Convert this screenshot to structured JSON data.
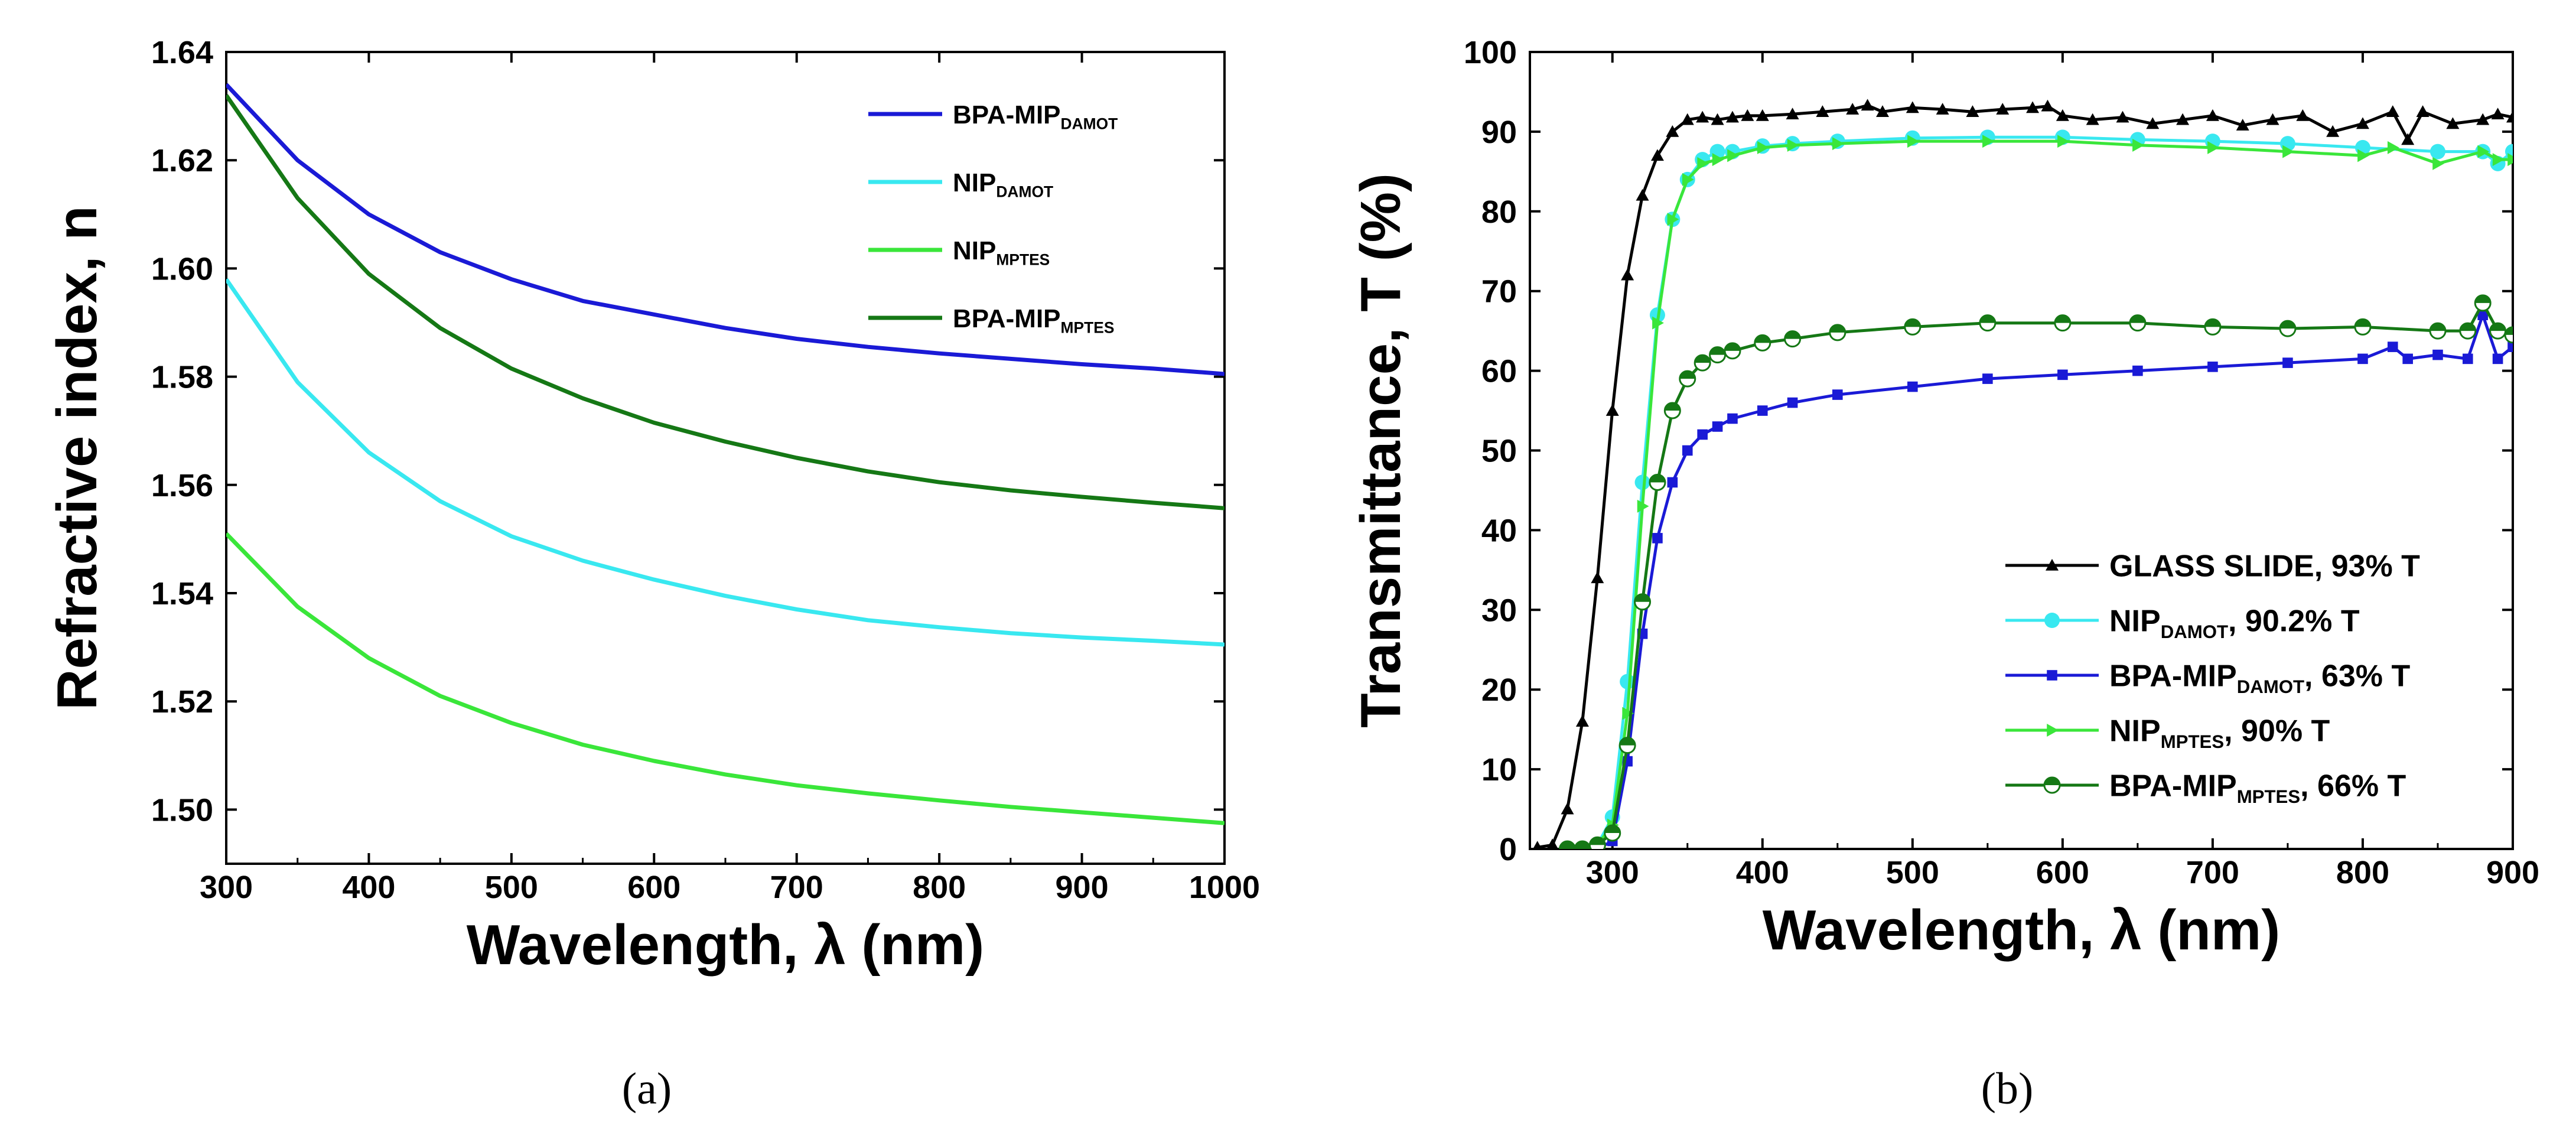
{
  "chart_data": [
    {
      "type": "line",
      "panel": "(a)",
      "xlabel": "Wavelength, λ (nm)",
      "ylabel": "Refractive index, n",
      "xlim": [
        300,
        1000
      ],
      "ylim": [
        1.49,
        1.64
      ],
      "xticks": [
        300,
        400,
        500,
        600,
        700,
        800,
        900,
        1000
      ],
      "yticks": [
        "1.50",
        "1.52",
        "1.54",
        "1.56",
        "1.58",
        "1.60",
        "1.62",
        "1.64"
      ],
      "legend_position": "top-right",
      "series": [
        {
          "name": "BPA-MIP",
          "sub": "DAMOT",
          "label": "",
          "color": "#1a1ad6",
          "x": [
            300,
            350,
            400,
            450,
            500,
            550,
            600,
            650,
            700,
            750,
            800,
            850,
            900,
            950,
            1000
          ],
          "y": [
            1.634,
            1.62,
            1.61,
            1.603,
            1.598,
            1.594,
            1.5915,
            1.589,
            1.587,
            1.5855,
            1.5843,
            1.5833,
            1.5823,
            1.5815,
            1.5805
          ]
        },
        {
          "name": "NIP",
          "sub": "DAMOT",
          "label": "",
          "color": "#39e8f0",
          "x": [
            300,
            350,
            400,
            450,
            500,
            550,
            600,
            650,
            700,
            750,
            800,
            850,
            900,
            950,
            1000
          ],
          "y": [
            1.598,
            1.579,
            1.566,
            1.557,
            1.5505,
            1.546,
            1.5425,
            1.5395,
            1.537,
            1.535,
            1.5337,
            1.5326,
            1.5318,
            1.5312,
            1.5305
          ]
        },
        {
          "name": "NIP",
          "sub": "MPTES",
          "label": "",
          "color": "#3ae63a",
          "x": [
            300,
            350,
            400,
            450,
            500,
            550,
            600,
            650,
            700,
            750,
            800,
            850,
            900,
            950,
            1000
          ],
          "y": [
            1.551,
            1.5375,
            1.528,
            1.521,
            1.516,
            1.512,
            1.509,
            1.5065,
            1.5045,
            1.503,
            1.5017,
            1.5005,
            1.4995,
            1.4985,
            1.4975
          ]
        },
        {
          "name": "BPA-MIP",
          "sub": "MPTES",
          "label": "",
          "color": "#157815",
          "x": [
            300,
            350,
            400,
            450,
            500,
            550,
            600,
            650,
            700,
            750,
            800,
            850,
            900,
            950,
            1000
          ],
          "y": [
            1.632,
            1.613,
            1.599,
            1.589,
            1.5815,
            1.576,
            1.5715,
            1.568,
            1.565,
            1.5625,
            1.5605,
            1.559,
            1.5578,
            1.5567,
            1.5557
          ]
        }
      ],
      "caption": "(a)"
    },
    {
      "type": "line",
      "panel": "(b)",
      "xlabel": "Wavelength, λ (nm)",
      "ylabel": "Transmittance, T (%)",
      "xlim": [
        245,
        900
      ],
      "ylim": [
        0,
        100
      ],
      "xticks": [
        300,
        400,
        500,
        600,
        700,
        800,
        900
      ],
      "yticks": [
        0,
        10,
        20,
        30,
        40,
        50,
        60,
        70,
        80,
        90,
        100
      ],
      "legend_position": "bottom-right",
      "series": [
        {
          "name": "GLASS SLIDE",
          "sub": "",
          "label": ", 93% T",
          "color": "#000000",
          "marker": "triangle",
          "x": [
            250,
            260,
            270,
            280,
            290,
            300,
            310,
            320,
            330,
            340,
            350,
            360,
            370,
            380,
            390,
            400,
            420,
            440,
            460,
            470,
            480,
            500,
            520,
            540,
            560,
            580,
            590,
            600,
            620,
            640,
            660,
            680,
            700,
            720,
            740,
            760,
            780,
            800,
            820,
            830,
            840,
            860,
            880,
            890,
            900
          ],
          "y": [
            0.2,
            0.5,
            5,
            16,
            34,
            55,
            72,
            82,
            87,
            90,
            91.5,
            91.8,
            91.5,
            91.8,
            92,
            92,
            92.2,
            92.5,
            92.8,
            93.3,
            92.5,
            93,
            92.8,
            92.5,
            92.8,
            93,
            93.2,
            92,
            91.5,
            91.8,
            91,
            91.5,
            92,
            90.8,
            91.5,
            92,
            90,
            91,
            92.5,
            89,
            92.5,
            91,
            91.5,
            92.2,
            91.8
          ]
        },
        {
          "name": "NIP",
          "sub": "DAMOT",
          "label": ", 90.2% T",
          "color": "#39e8f0",
          "marker": "circle",
          "x": [
            270,
            280,
            290,
            300,
            310,
            320,
            330,
            340,
            350,
            360,
            370,
            380,
            400,
            420,
            450,
            500,
            550,
            600,
            650,
            700,
            750,
            800,
            850,
            880,
            890,
            900
          ],
          "y": [
            0,
            0,
            0.5,
            4,
            21,
            46,
            67,
            79,
            84,
            86.5,
            87.5,
            87.5,
            88.2,
            88.5,
            88.8,
            89.2,
            89.3,
            89.3,
            89,
            88.8,
            88.5,
            88,
            87.5,
            87.5,
            86,
            87.5
          ]
        },
        {
          "name": "BPA-MIP",
          "sub": "DAMOT",
          "label": ", 63% T",
          "color": "#1a1ad6",
          "marker": "square",
          "x": [
            270,
            280,
            290,
            300,
            310,
            320,
            330,
            340,
            350,
            360,
            370,
            380,
            400,
            420,
            450,
            500,
            550,
            600,
            650,
            700,
            750,
            800,
            820,
            830,
            850,
            870,
            880,
            890,
            900
          ],
          "y": [
            0,
            0,
            0,
            1,
            11,
            27,
            39,
            46,
            50,
            52,
            53,
            54,
            55,
            56,
            57,
            58,
            59,
            59.5,
            60,
            60.5,
            61,
            61.5,
            63,
            61.5,
            62,
            61.5,
            67,
            61.5,
            63
          ]
        },
        {
          "name": "NIP",
          "sub": "MPTES",
          "label": ", 90% T",
          "color": "#3ae63a",
          "marker": "triangle-right",
          "x": [
            270,
            280,
            290,
            300,
            310,
            320,
            330,
            340,
            350,
            360,
            370,
            380,
            400,
            420,
            450,
            500,
            550,
            600,
            650,
            700,
            750,
            800,
            820,
            850,
            880,
            890,
            900
          ],
          "y": [
            0,
            0,
            0.5,
            3,
            17,
            43,
            66,
            79,
            84,
            86,
            86.5,
            87,
            88,
            88.3,
            88.5,
            88.8,
            88.8,
            88.8,
            88.3,
            88,
            87.5,
            87,
            88,
            86,
            87.5,
            86.5,
            86.5
          ]
        },
        {
          "name": "BPA-MIP",
          "sub": "MPTES",
          "label": ", 66% T",
          "color": "#157815",
          "marker": "half-circle",
          "x": [
            270,
            280,
            290,
            300,
            310,
            320,
            330,
            340,
            350,
            360,
            370,
            380,
            400,
            420,
            450,
            500,
            550,
            600,
            650,
            700,
            750,
            800,
            850,
            870,
            880,
            890,
            900
          ],
          "y": [
            0,
            0,
            0.5,
            2,
            13,
            31,
            46,
            55,
            59,
            61,
            62,
            62.5,
            63.5,
            64,
            64.8,
            65.5,
            66,
            66,
            66,
            65.5,
            65.3,
            65.5,
            65,
            65,
            68.5,
            65,
            64.5
          ]
        }
      ],
      "caption": "(b)"
    }
  ]
}
